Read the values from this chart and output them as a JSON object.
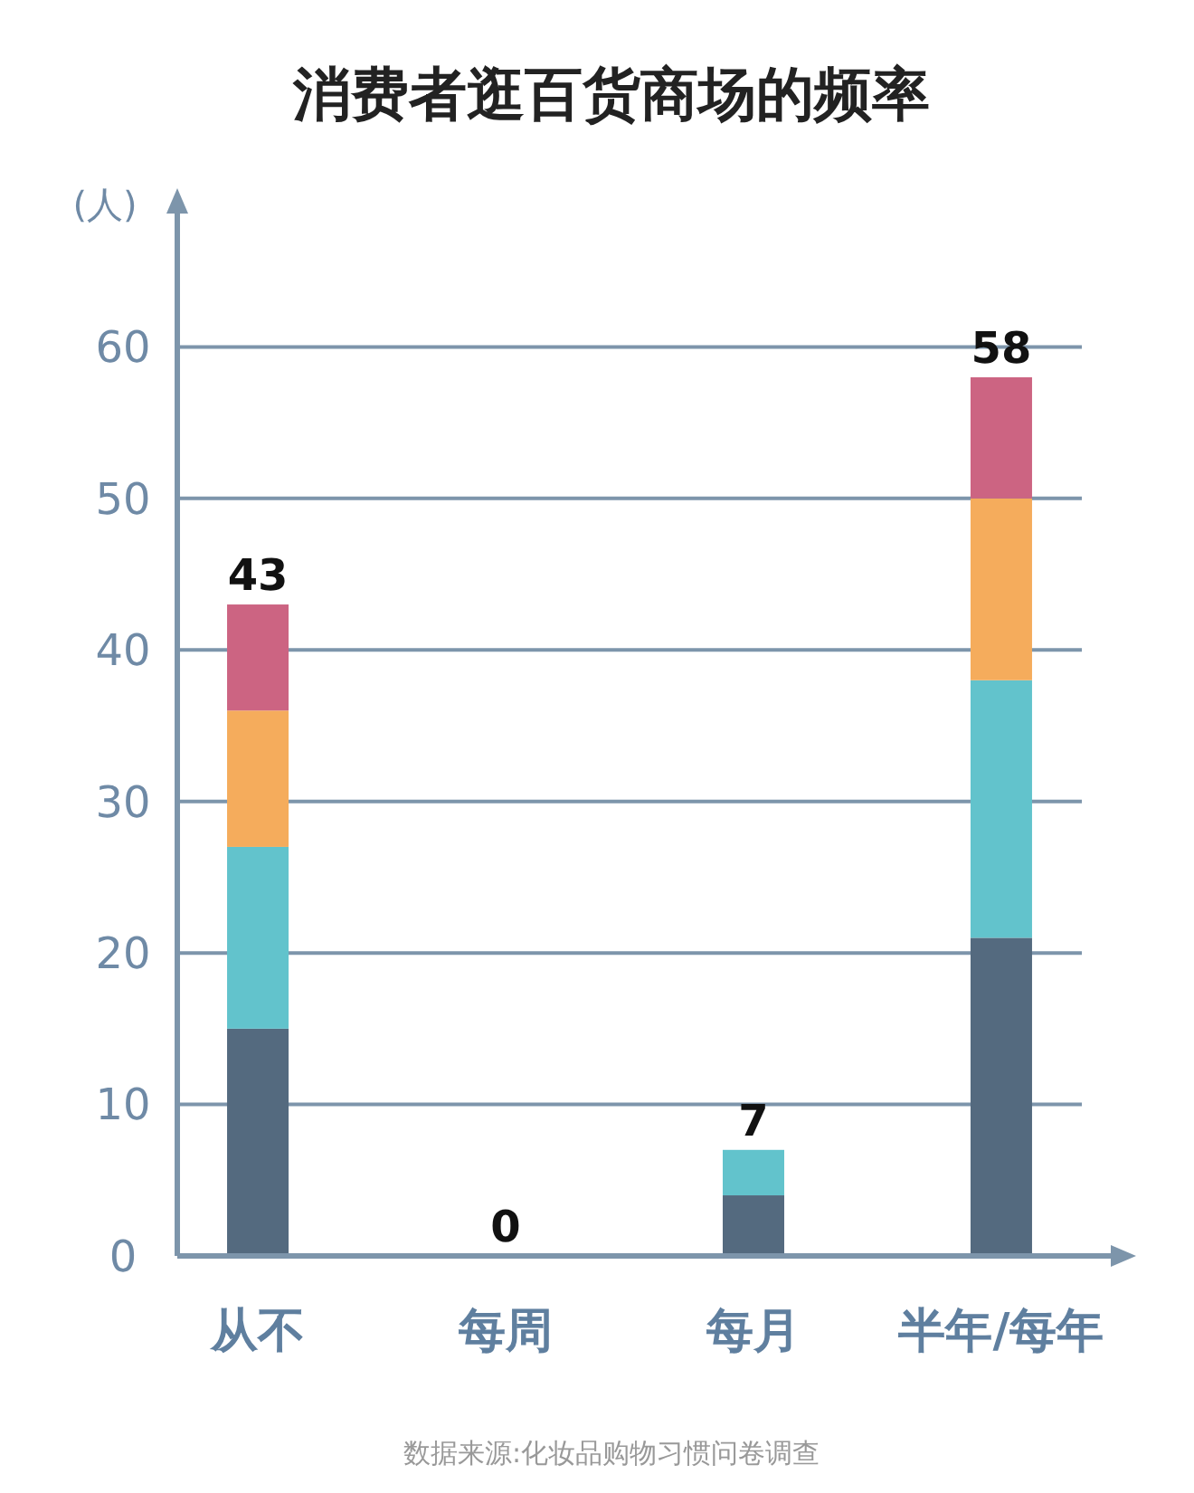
{
  "chart_data": {
    "type": "bar",
    "title": "消费者逛百货商场的频率",
    "ylabel": "(人)",
    "categories": [
      "从不",
      "每周",
      "每月",
      "半年/每年"
    ],
    "series": [
      {
        "color": "#546a7f",
        "values": [
          15,
          0,
          4,
          21
        ]
      },
      {
        "color": "#62c3cc",
        "values": [
          12,
          0,
          3,
          17
        ]
      },
      {
        "color": "#f5ac5c",
        "values": [
          9,
          0,
          0,
          12
        ]
      },
      {
        "color": "#cc6482",
        "values": [
          7,
          0,
          0,
          8
        ]
      }
    ],
    "stacked": true,
    "totals": [
      "43",
      "0",
      "7",
      "58"
    ],
    "ylim": [
      0,
      70
    ],
    "yticks": [
      0,
      10,
      20,
      30,
      40,
      50,
      60
    ],
    "grid": "y",
    "annotations": [
      "数据来源:化妆品购物习惯问卷调查"
    ]
  }
}
